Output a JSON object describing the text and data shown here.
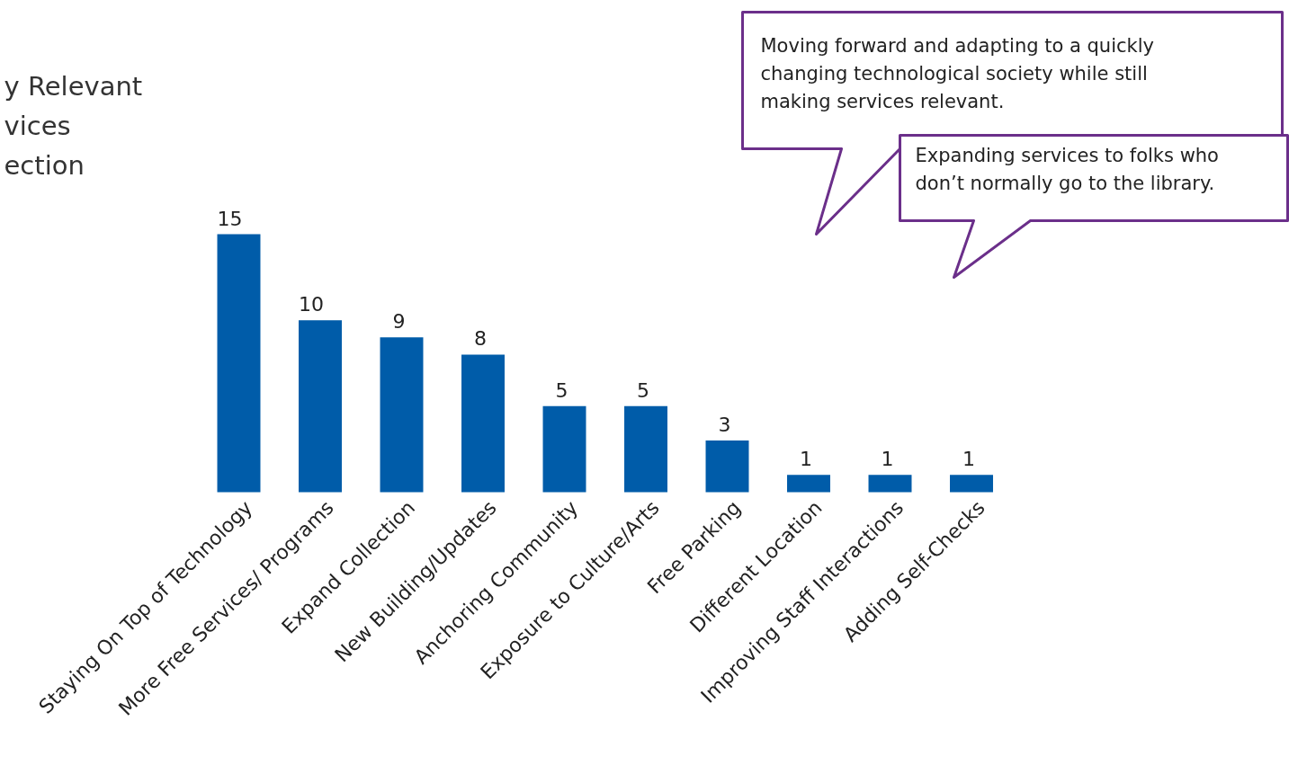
{
  "chart_data": {
    "type": "bar",
    "title": "y Relevant\nvices\nection",
    "categories": [
      "Staying On Top of Technology",
      "More Free Services/ Programs",
      "Expand Collection",
      "New Building/Updates",
      "Anchoring Community",
      "Exposure to Culture/Arts",
      "Free Parking",
      "Different Location",
      "Improving Staff Interactions",
      "Adding Self-Checks"
    ],
    "values": [
      15,
      10,
      9,
      8,
      5,
      5,
      3,
      1,
      1,
      1
    ],
    "color": "#005ca9",
    "data_labels": true,
    "annotations": [
      "Moving forward and adapting to a quickly\nchanging technological society while still\nmaking services relevant.",
      "Expanding services to folks who\ndon’t normally go to the library."
    ]
  }
}
